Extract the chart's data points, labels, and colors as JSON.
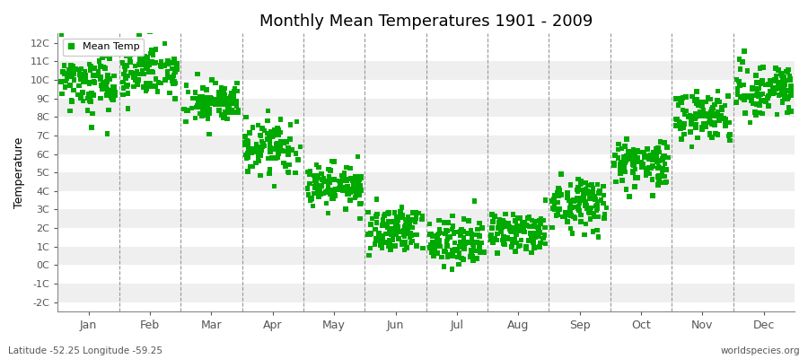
{
  "title": "Monthly Mean Temperatures 1901 - 2009",
  "ylabel": "Temperature",
  "subtitle_left": "Latitude -52.25 Longitude -59.25",
  "subtitle_right": "worldspecies.org",
  "legend_label": "Mean Temp",
  "marker_color": "#00aa00",
  "marker": "s",
  "marker_size": 4,
  "yticks": [
    -2,
    -1,
    0,
    1,
    2,
    3,
    4,
    5,
    6,
    7,
    8,
    9,
    10,
    11,
    12
  ],
  "ytick_labels": [
    "-2C",
    "-1C",
    "0C",
    "1C",
    "2C",
    "3C",
    "4C",
    "5C",
    "6C",
    "7C",
    "8C",
    "9C",
    "10C",
    "11C",
    "12C"
  ],
  "ylim": [
    -2.5,
    12.5
  ],
  "background_color": "#ffffff",
  "band_colors": [
    "#efefef",
    "#ffffff"
  ],
  "grid_color": "#999999",
  "months": [
    "Jan",
    "Feb",
    "Mar",
    "Apr",
    "May",
    "Jun",
    "Jul",
    "Aug",
    "Sep",
    "Oct",
    "Nov",
    "Dec"
  ],
  "month_centers": [
    0.5,
    1.5,
    2.5,
    3.5,
    4.5,
    5.5,
    6.5,
    7.5,
    8.5,
    9.5,
    10.5,
    11.5
  ],
  "mean_by_month": [
    9.8,
    10.5,
    8.7,
    6.3,
    4.3,
    1.9,
    1.2,
    1.7,
    3.3,
    5.5,
    8.0,
    9.5
  ],
  "std_by_month": [
    0.8,
    0.7,
    0.5,
    0.7,
    0.6,
    0.6,
    0.6,
    0.5,
    0.7,
    0.7,
    0.6,
    0.7
  ],
  "n_points": 109
}
